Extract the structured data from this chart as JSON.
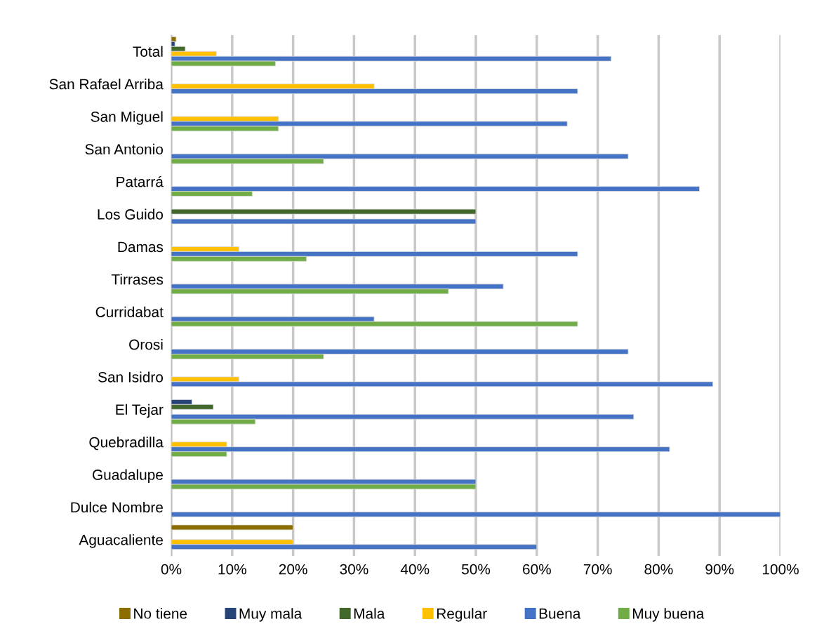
{
  "chart_data": {
    "type": "bar",
    "orientation": "horizontal",
    "categories": [
      "Total",
      "San Rafael Arriba",
      "San Miguel",
      "San Antonio",
      "Patarrá",
      "Los Guido",
      "Damas",
      "Tirrases",
      "Curridabat",
      "Orosi",
      "San Isidro",
      "El Tejar",
      "Quebradilla",
      "Guadalupe",
      "Dulce Nombre",
      "Aguacaliente"
    ],
    "series": [
      {
        "name": "No tiene",
        "color": "#8c6d00",
        "values": [
          0.8,
          null,
          null,
          null,
          null,
          null,
          null,
          null,
          null,
          null,
          null,
          null,
          null,
          null,
          null,
          20
        ]
      },
      {
        "name": "Muy mala",
        "color": "#264478",
        "values": [
          0.6,
          null,
          null,
          null,
          null,
          null,
          null,
          null,
          null,
          null,
          null,
          3.4,
          null,
          null,
          null,
          null
        ]
      },
      {
        "name": "Mala",
        "color": "#43682b",
        "values": [
          2.3,
          null,
          null,
          null,
          null,
          50,
          null,
          null,
          null,
          null,
          null,
          6.9,
          null,
          null,
          null,
          null
        ]
      },
      {
        "name": "Regular",
        "color": "#ffc000",
        "values": [
          7.4,
          33.3,
          17.6,
          null,
          null,
          null,
          11.1,
          null,
          null,
          null,
          11.1,
          null,
          9.1,
          null,
          null,
          20
        ]
      },
      {
        "name": "Buena",
        "color": "#4472c4",
        "values": [
          72.2,
          66.7,
          65,
          75,
          86.7,
          50,
          66.7,
          54.5,
          33.3,
          75,
          88.9,
          75.9,
          81.8,
          50,
          100,
          60
        ]
      },
      {
        "name": "Muy buena",
        "color": "#70ad47",
        "values": [
          17.1,
          null,
          17.6,
          25,
          13.3,
          null,
          22.2,
          45.5,
          66.7,
          25,
          null,
          13.8,
          9.1,
          50,
          null,
          null
        ]
      }
    ],
    "xlim": [
      0,
      100
    ],
    "xticks": [
      {
        "value": 0,
        "label": "0%"
      },
      {
        "value": 10,
        "label": "10%"
      },
      {
        "value": 20,
        "label": "20%"
      },
      {
        "value": 30,
        "label": "30%"
      },
      {
        "value": 40,
        "label": "40%"
      },
      {
        "value": 50,
        "label": "50%"
      },
      {
        "value": 60,
        "label": "60%"
      },
      {
        "value": 70,
        "label": "70%"
      },
      {
        "value": 80,
        "label": "80%"
      },
      {
        "value": 90,
        "label": "90%"
      },
      {
        "value": 100,
        "label": "100%"
      }
    ],
    "grid": "x",
    "legend": "bottom"
  }
}
